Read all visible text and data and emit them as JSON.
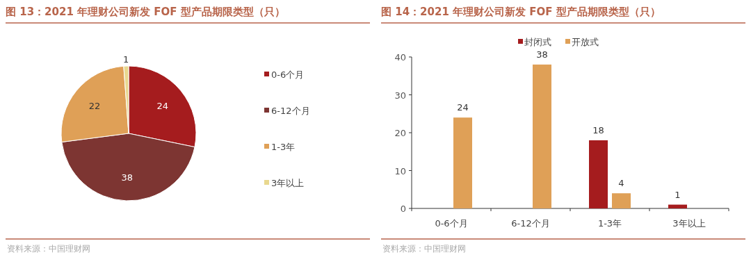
{
  "chart_data": [
    {
      "type": "pie",
      "title": "图 13：2021 年理财公司新发 FOF 型产品期限类型（只）",
      "categories": [
        "0-6个月",
        "6-12个月",
        "1-3年",
        "3年以上"
      ],
      "values": [
        24,
        38,
        22,
        1
      ],
      "colors": [
        "#a51c1e",
        "#7d3532",
        "#dfa057",
        "#e9d88f"
      ],
      "data_labels": true,
      "legend": "right",
      "annotations": [
        "资料来源：中国理财网"
      ]
    },
    {
      "type": "bar",
      "title": "图 14：2021 年理财公司新发 FOF 型产品期限类型（只）",
      "categories": [
        "0-6个月",
        "6-12个月",
        "1-3年",
        "3年以上"
      ],
      "series": [
        {
          "name": "封闭式",
          "color": "#a51c1e",
          "values": [
            null,
            null,
            18,
            1
          ]
        },
        {
          "name": "开放式",
          "color": "#dfa057",
          "values": [
            24,
            38,
            4,
            null
          ]
        }
      ],
      "ylim": [
        0,
        40
      ],
      "yticks": [
        0,
        10,
        20,
        30,
        40
      ],
      "data_labels": true,
      "legend": "top",
      "grid": false,
      "annotations": [
        "资料来源：中国理财网"
      ]
    }
  ]
}
